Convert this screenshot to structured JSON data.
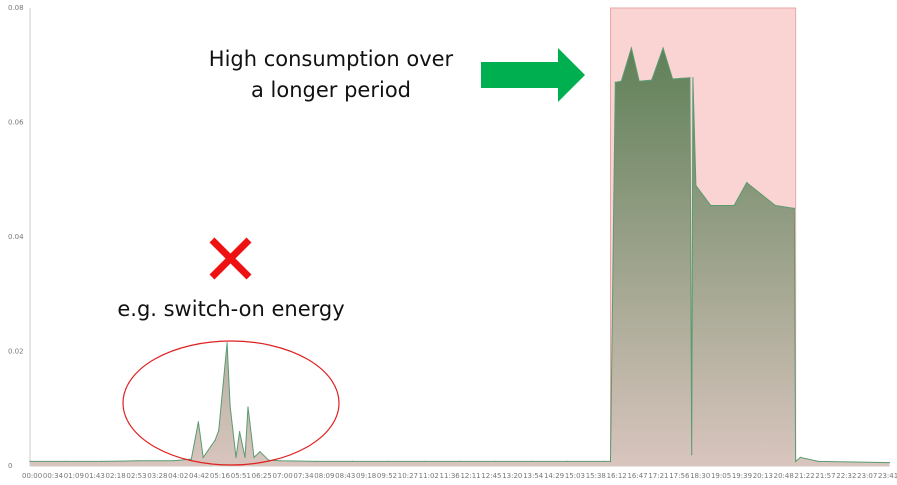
{
  "chart_data": {
    "type": "area",
    "title": "",
    "xlabel": "",
    "ylabel": "",
    "ylim": [
      0,
      0.08
    ],
    "y_ticks": [
      "0",
      "0.02",
      "0.04",
      "0.06",
      "0.08"
    ],
    "x_ticks": [
      "00:00",
      "00:34",
      "01:09",
      "01:43",
      "02:18",
      "02:53",
      "03:28",
      "04:02",
      "04:42",
      "05:16",
      "05:51",
      "06:25",
      "07:00",
      "07:34",
      "08:09",
      "08:43",
      "09:18",
      "09:52",
      "10:27",
      "11:02",
      "11:36",
      "12:11",
      "12:45",
      "13:20",
      "13:54",
      "14:29",
      "15:03",
      "15:38",
      "16:12",
      "16:47",
      "17:21",
      "17:56",
      "18:30",
      "19:05",
      "19:39",
      "20:13",
      "20:48",
      "21:22",
      "21:57",
      "22:32",
      "23:07",
      "23:41"
    ],
    "grid": false,
    "legend": "none",
    "series": [
      {
        "x": [
          "00:00",
          "01:00",
          "02:00",
          "03:00",
          "04:00",
          "04:30",
          "04:42",
          "04:50",
          "05:10",
          "05:16",
          "05:30",
          "05:35",
          "05:45",
          "05:51",
          "06:00",
          "06:05",
          "06:15",
          "06:25",
          "06:40",
          "07:00",
          "08:00",
          "09:00",
          "10:00",
          "11:00",
          "12:00",
          "13:00",
          "14:00",
          "15:00",
          "16:00",
          "16:12",
          "16:20",
          "16:30",
          "16:47",
          "17:00",
          "17:21",
          "17:40",
          "17:56",
          "18:10",
          "18:25",
          "18:28",
          "18:30",
          "18:35",
          "19:00",
          "19:39",
          "20:00",
          "20:48",
          "21:20",
          "21:22",
          "21:30",
          "22:00",
          "23:00",
          "23:59"
        ],
        "values": [
          0.0008,
          0.0008,
          0.0008,
          0.0009,
          0.0009,
          0.0012,
          0.0077,
          0.0015,
          0.0045,
          0.0062,
          0.0215,
          0.0105,
          0.0015,
          0.006,
          0.0015,
          0.0103,
          0.0015,
          0.0025,
          0.001,
          0.0009,
          0.0008,
          0.0008,
          0.0008,
          0.0008,
          0.0008,
          0.0008,
          0.0008,
          0.0008,
          0.0008,
          0.0008,
          0.067,
          0.0672,
          0.073,
          0.0672,
          0.0674,
          0.073,
          0.0676,
          0.0677,
          0.0678,
          0.002,
          0.0678,
          0.049,
          0.0455,
          0.0455,
          0.0495,
          0.0455,
          0.045,
          0.0008,
          0.0015,
          0.0008,
          0.0007,
          0.0006
        ]
      }
    ],
    "highlight_region": {
      "x_start": "16:12",
      "x_end": "21:22",
      "color": "#f7c6c3"
    },
    "annotations": {
      "high_line1": "High consumption over",
      "high_line2": "a longer period",
      "switch_on": "e.g. switch-on energy"
    },
    "colors": {
      "line": "#5a9b72",
      "area_top": "#5f8058",
      "area_bottom": "#d9c5be",
      "arrow": "#00b050",
      "cross": "#ee1111",
      "ellipse": "#e02020"
    }
  }
}
